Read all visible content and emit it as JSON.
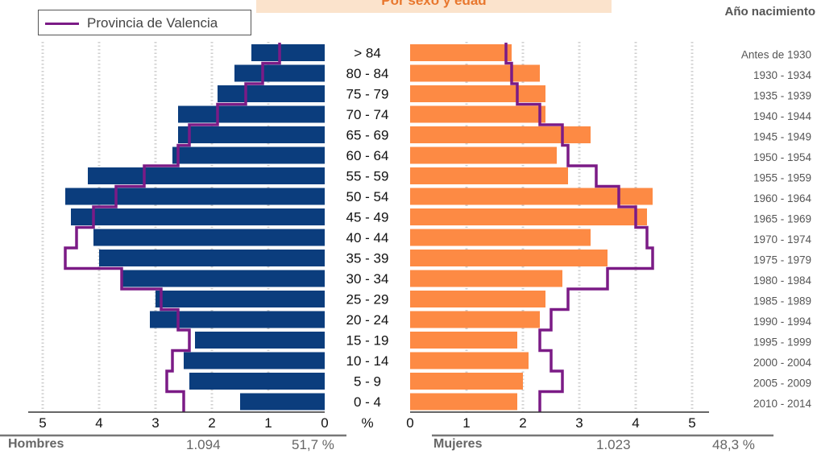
{
  "title": "Por sexo y edad",
  "legend": {
    "label": "Provincia de Valencia",
    "line_color": "#7b1b86"
  },
  "birth_header": "Año nacimiento",
  "footer": {
    "male_label": "Hombres",
    "male_count": "1.094",
    "male_pct": "51,7 %",
    "female_label": "Mujeres",
    "female_count": "1.023",
    "female_pct": "48,3 %"
  },
  "chart_data": {
    "type": "bar",
    "orientation": "horizontal-pyramid",
    "categories": [
      "> 84",
      "80 - 84",
      "75 - 79",
      "70 - 74",
      "65 - 69",
      "60 - 64",
      "55 - 59",
      "50 - 54",
      "45 - 49",
      "40 - 44",
      "35 - 39",
      "30 - 34",
      "25 - 29",
      "20 - 24",
      "15 - 19",
      "10 - 14",
      "5 - 9",
      "0 - 4"
    ],
    "birth_years": [
      "Antes de 1930",
      "1930 - 1934",
      "1935 - 1939",
      "1940 - 1944",
      "1945 - 1949",
      "1950 - 1954",
      "1955 - 1959",
      "1960 - 1964",
      "1965 - 1969",
      "1970 - 1974",
      "1975 - 1979",
      "1980 - 1984",
      "1985 - 1989",
      "1990 - 1994",
      "1995 - 1999",
      "2000 - 2004",
      "2005 - 2009",
      "2010 - 2014"
    ],
    "series": [
      {
        "name": "Hombres",
        "color": "#0b3d7d",
        "values": [
          1.3,
          1.6,
          1.9,
          2.6,
          2.6,
          2.7,
          4.2,
          4.6,
          4.5,
          4.1,
          4.0,
          3.6,
          3.0,
          3.1,
          2.3,
          2.5,
          2.4,
          1.5
        ]
      },
      {
        "name": "Mujeres",
        "color": "#fd8a44",
        "values": [
          1.8,
          2.3,
          2.4,
          2.4,
          3.2,
          2.6,
          2.8,
          4.3,
          4.2,
          3.2,
          3.5,
          2.7,
          2.4,
          2.3,
          1.9,
          2.1,
          2.0,
          1.9
        ]
      },
      {
        "name": "Provincia de Valencia",
        "side": "Hombres",
        "color": "#7b1b86",
        "values": [
          0.8,
          1.1,
          1.4,
          1.9,
          2.4,
          2.6,
          3.2,
          3.7,
          4.1,
          4.4,
          4.6,
          3.6,
          2.9,
          2.6,
          2.4,
          2.7,
          2.8,
          2.5
        ]
      },
      {
        "name": "Provincia de Valencia",
        "side": "Mujeres",
        "color": "#7b1b86",
        "values": [
          1.7,
          1.8,
          1.9,
          2.3,
          2.7,
          2.8,
          3.3,
          3.7,
          4.0,
          4.2,
          4.3,
          3.5,
          2.8,
          2.5,
          2.3,
          2.5,
          2.7,
          2.3
        ]
      }
    ],
    "xlim": [
      0,
      5
    ],
    "xticks": [
      "0",
      "1",
      "2",
      "3",
      "4",
      "5"
    ],
    "center_label": "%",
    "grid": true
  }
}
